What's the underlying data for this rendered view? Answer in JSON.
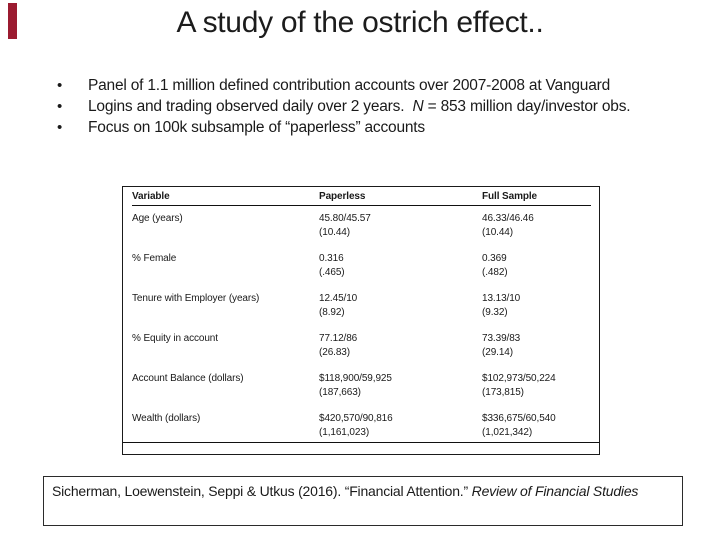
{
  "slide": {
    "background": "#ffffff",
    "accent_color": "#9b1b30",
    "bullet_char": "•",
    "title": "A study of the ostrich effect..",
    "bullets": [
      {
        "runs": [
          {
            "text": "Panel of 1.1 million defined contribution accounts over 2007-2008 at Vanguard",
            "italic": false
          }
        ]
      },
      {
        "runs": [
          {
            "text": "Logins and trading observed daily over 2 years.  ",
            "italic": false
          },
          {
            "text": "N",
            "italic": true
          },
          {
            "text": " = 853 million day/investor obs.",
            "italic": false
          }
        ]
      },
      {
        "runs": [
          {
            "text": "Focus on 100k subsample of “paperless” accounts",
            "italic": false
          }
        ]
      }
    ],
    "table": {
      "columns": [
        "Variable",
        "Paperless",
        "Full Sample"
      ],
      "rows": [
        {
          "variable": "Age (years)",
          "paperless": [
            "45.80/45.57",
            "(10.44)"
          ],
          "full_sample": [
            "46.33/46.46",
            "(10.44)"
          ]
        },
        {
          "variable": "% Female",
          "paperless": [
            "0.316",
            "(.465)"
          ],
          "full_sample": [
            "0.369",
            "(.482)"
          ]
        },
        {
          "variable": "Tenure with Employer (years)",
          "paperless": [
            "12.45/10",
            "(8.92)"
          ],
          "full_sample": [
            "13.13/10",
            "(9.32)"
          ]
        },
        {
          "variable": "% Equity in account",
          "paperless": [
            "77.12/86",
            "(26.83)"
          ],
          "full_sample": [
            "73.39/83",
            "(29.14)"
          ]
        },
        {
          "variable": "Account Balance (dollars)",
          "paperless": [
            "$118,900/59,925",
            "(187,663)"
          ],
          "full_sample": [
            "$102,973/50,224",
            "(173,815)"
          ]
        },
        {
          "variable": "Wealth (dollars)",
          "paperless": [
            "$420,570/90,816",
            "(1,161,023)"
          ],
          "full_sample": [
            "$336,675/60,540",
            "(1,021,342)"
          ]
        }
      ]
    },
    "citation": {
      "runs": [
        {
          "text": "Sicherman, Loewenstein, Seppi & Utkus (2016). “Financial Attention.” ",
          "italic": false
        },
        {
          "text": "Review of Financial Studies",
          "italic": true
        }
      ]
    }
  }
}
